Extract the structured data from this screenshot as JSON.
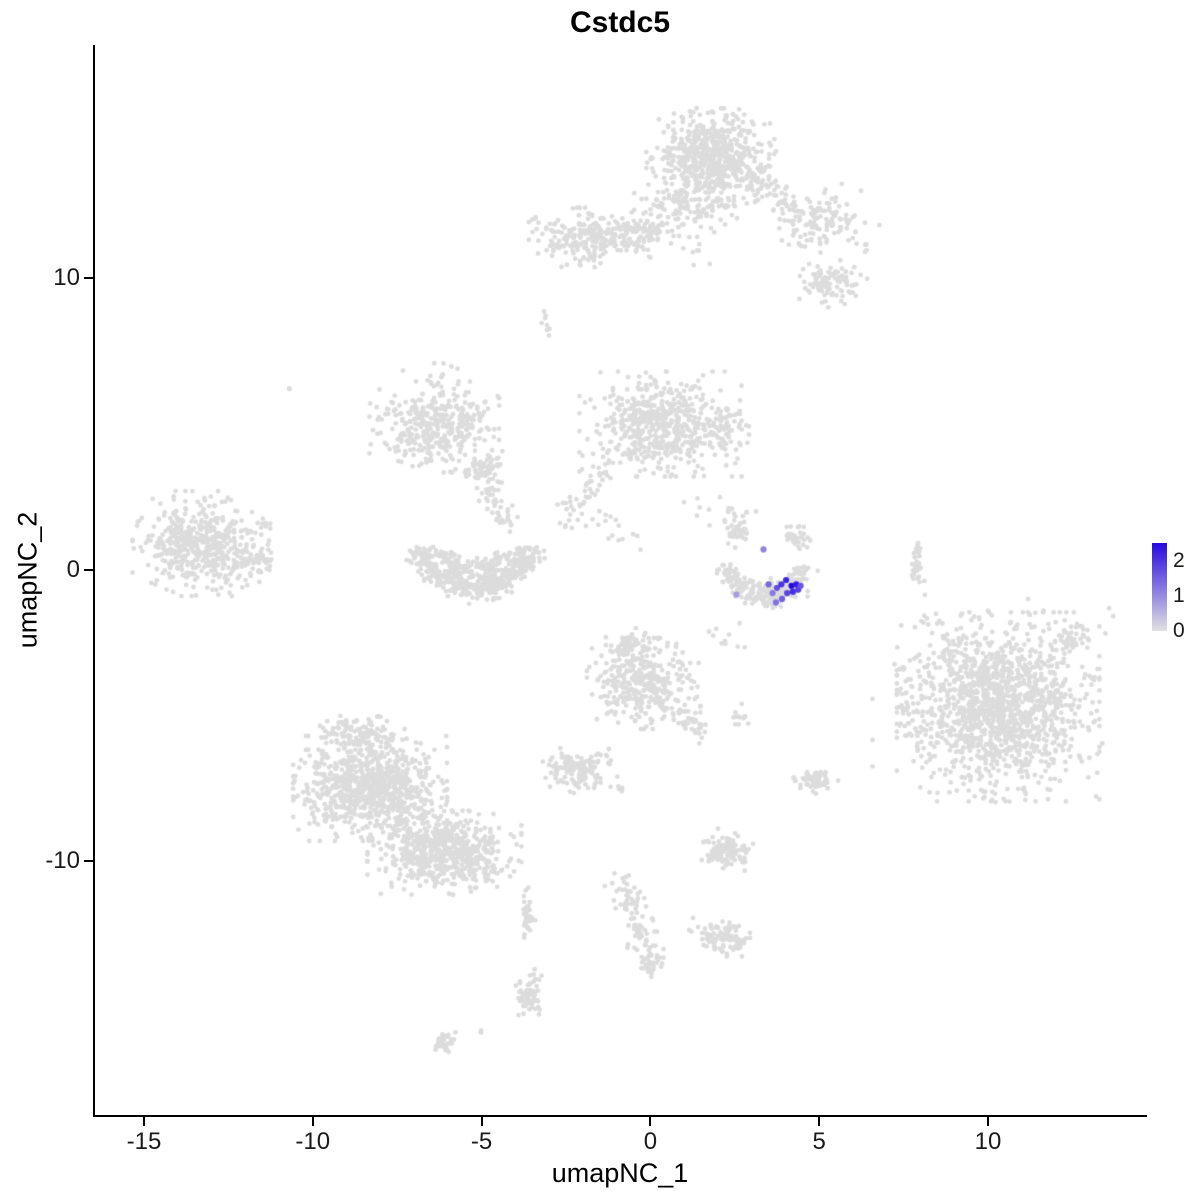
{
  "title": "Cstdc5",
  "axes": {
    "x": {
      "label": "umapNC_1",
      "ticks": [
        "-15",
        "-10",
        "-5",
        "0",
        "5",
        "10"
      ],
      "tick_values": [
        -15,
        -10,
        -5,
        0,
        5,
        10
      ],
      "range": [
        -16.45,
        14.65
      ]
    },
    "y": {
      "label": "umapNC_2",
      "ticks": [
        "-10",
        "0",
        "10"
      ],
      "tick_values": [
        -10,
        0,
        10
      ],
      "range": [
        -18.7,
        18.0
      ]
    }
  },
  "legend": {
    "tick_labels": [
      "2",
      "1",
      "0"
    ],
    "tick_values": [
      2,
      1,
      0
    ],
    "domain": [
      0,
      2.5
    ]
  },
  "style": {
    "base_point_color": "#DCDCDC",
    "axis_color": "#000000",
    "background_color": "#FFFFFF"
  },
  "chart_data": {
    "type": "scatter",
    "title": "Cstdc5",
    "xlabel": "umapNC_1",
    "ylabel": "umapNC_2",
    "xlim": [
      -16.45,
      14.65
    ],
    "ylim": [
      -18.7,
      18.0
    ],
    "grid": false,
    "legend_position": "right",
    "seed": 1234,
    "point_radius_px": 2.4,
    "color_scale": {
      "low": "#E1E1E1",
      "high": "#2609E0",
      "domain": [
        0,
        2.5
      ]
    },
    "background_clusters": [
      {
        "shape": "blob",
        "cx": 1.8,
        "cy": 14.15,
        "rx": 1.6,
        "ry": 1.4,
        "n": 620
      },
      {
        "shape": "blob",
        "cx": 1.2,
        "cy": 12.5,
        "rx": 1.4,
        "ry": 0.9,
        "n": 120
      },
      {
        "shape": "blob",
        "cx": 4.9,
        "cy": 11.9,
        "rx": 0.9,
        "ry": 0.85,
        "n": 100
      },
      {
        "shape": "blob",
        "cx": 5.4,
        "cy": 9.9,
        "rx": 0.85,
        "ry": 0.75,
        "n": 95
      },
      {
        "shape": "line",
        "x1": 2.9,
        "y1": 13.4,
        "x2": 4.6,
        "y2": 12.2,
        "w": 0.55,
        "n": 70
      },
      {
        "shape": "line",
        "x1": 5.6,
        "y1": 12.8,
        "x2": 6.3,
        "y2": 11.2,
        "w": 0.7,
        "n": 25
      },
      {
        "shape": "line",
        "x1": 0.9,
        "y1": 11.3,
        "x2": 1.6,
        "y2": 10.5,
        "w": 0.35,
        "n": 10
      },
      {
        "shape": "blob",
        "cx": -1.8,
        "cy": 11.4,
        "rx": 1.5,
        "ry": 0.85,
        "n": 240
      },
      {
        "shape": "blob",
        "cx": -0.2,
        "cy": 11.6,
        "rx": 0.7,
        "ry": 0.6,
        "n": 60
      },
      {
        "shape": "blob",
        "cx": -3.1,
        "cy": 8.5,
        "rx": 0.12,
        "ry": 0.45,
        "n": 8
      },
      {
        "shape": "blob",
        "cx": 0.3,
        "cy": 5.0,
        "rx": 2.0,
        "ry": 1.5,
        "n": 560
      },
      {
        "shape": "line",
        "x1": -1.3,
        "y1": 3.6,
        "x2": -2.6,
        "y2": 1.6,
        "w": 0.5,
        "n": 50
      },
      {
        "shape": "blob",
        "cx": 2.2,
        "cy": 4.6,
        "rx": 0.6,
        "ry": 0.9,
        "n": 50
      },
      {
        "shape": "line",
        "x1": -1.5,
        "y1": 1.9,
        "x2": -0.5,
        "y2": 0.9,
        "w": 0.5,
        "n": 15
      },
      {
        "shape": "line",
        "x1": 1.3,
        "y1": 2.3,
        "x2": 3.0,
        "y2": 1.6,
        "w": 0.6,
        "n": 18
      },
      {
        "shape": "blob",
        "cx": -6.4,
        "cy": 4.9,
        "rx": 1.6,
        "ry": 1.3,
        "n": 360
      },
      {
        "shape": "line",
        "x1": -7.0,
        "y1": 6.5,
        "x2": -5.5,
        "y2": 7.0,
        "w": 0.4,
        "n": 12
      },
      {
        "shape": "blob",
        "cx": -4.9,
        "cy": 3.5,
        "rx": 0.5,
        "ry": 0.5,
        "n": 60
      },
      {
        "shape": "line",
        "x1": -4.8,
        "y1": 3.2,
        "x2": -4.3,
        "y2": 1.5,
        "w": 0.4,
        "n": 50
      },
      {
        "shape": "arc",
        "cx": -5.2,
        "cy": 0.9,
        "rx": 1.6,
        "ry": 1.5,
        "a1": 185,
        "a2": 355,
        "w": 0.5,
        "n": 420
      },
      {
        "shape": "arc",
        "cx": -5.2,
        "cy": 0.9,
        "rx": 1.0,
        "ry": 0.9,
        "a1": 200,
        "a2": 340,
        "w": 0.4,
        "n": 120
      },
      {
        "shape": "blob",
        "cx": -13.3,
        "cy": 0.9,
        "rx": 1.7,
        "ry": 1.5,
        "n": 520
      },
      {
        "shape": "blob",
        "cx": -11.6,
        "cy": 0.3,
        "rx": 0.4,
        "ry": 0.6,
        "n": 30
      },
      {
        "shape": "blob",
        "cx": -10.7,
        "cy": 6.2,
        "rx": 0.08,
        "ry": 0.08,
        "n": 2
      },
      {
        "shape": "arc",
        "cx": 3.4,
        "cy": 0.35,
        "rx": 1.1,
        "ry": 1.25,
        "a1": 190,
        "a2": 350,
        "w": 0.45,
        "n": 210
      },
      {
        "shape": "blob",
        "cx": 2.6,
        "cy": 1.3,
        "rx": 0.35,
        "ry": 0.45,
        "n": 40
      },
      {
        "shape": "blob",
        "cx": 3.7,
        "cy": -0.7,
        "rx": 0.8,
        "ry": 0.35,
        "n": 70
      },
      {
        "shape": "blob",
        "cx": 4.4,
        "cy": 1.1,
        "rx": 0.3,
        "ry": 0.5,
        "n": 30
      },
      {
        "shape": "blob",
        "cx": 7.9,
        "cy": 0.2,
        "rx": 0.18,
        "ry": 0.85,
        "n": 35
      },
      {
        "shape": "blob",
        "cx": 10.3,
        "cy": -4.7,
        "rx": 2.5,
        "ry": 2.7,
        "n": 1250
      },
      {
        "shape": "blob",
        "cx": 10.3,
        "cy": -4.7,
        "rx": 3.1,
        "ry": 3.2,
        "n": 180
      },
      {
        "shape": "line",
        "x1": 12.0,
        "y1": -2.6,
        "x2": 13.0,
        "y2": -2.0,
        "w": 0.5,
        "n": 40
      },
      {
        "shape": "line",
        "x1": 7.6,
        "y1": -3.2,
        "x2": 7.9,
        "y2": -6.0,
        "w": 0.5,
        "n": 40
      },
      {
        "shape": "line",
        "x1": 8.0,
        "y1": -1.6,
        "x2": 9.2,
        "y2": -2.3,
        "w": 0.4,
        "n": 12
      },
      {
        "shape": "blob",
        "cx": -0.2,
        "cy": -3.9,
        "rx": 1.4,
        "ry": 1.3,
        "n": 330
      },
      {
        "shape": "blob",
        "cx": -0.6,
        "cy": -2.6,
        "rx": 0.6,
        "ry": 0.5,
        "n": 60
      },
      {
        "shape": "line",
        "x1": 0.8,
        "y1": -4.9,
        "x2": 1.5,
        "y2": -5.6,
        "w": 0.4,
        "n": 40
      },
      {
        "shape": "blob",
        "cx": 2.6,
        "cy": -5.0,
        "rx": 0.25,
        "ry": 0.35,
        "n": 12
      },
      {
        "shape": "line",
        "x1": 2.0,
        "y1": -1.9,
        "x2": 2.8,
        "y2": -2.9,
        "w": 0.4,
        "n": 10
      },
      {
        "shape": "line",
        "x1": -1.2,
        "y1": -6.2,
        "x2": -0.8,
        "y2": -7.6,
        "w": 0.4,
        "n": 12
      },
      {
        "shape": "blob",
        "cx": -8.3,
        "cy": -7.5,
        "rx": 1.9,
        "ry": 1.5,
        "n": 850
      },
      {
        "shape": "blob",
        "cx": -6.1,
        "cy": -9.7,
        "rx": 1.9,
        "ry": 1.2,
        "n": 500
      },
      {
        "shape": "blob",
        "cx": -8.6,
        "cy": -5.6,
        "rx": 1.1,
        "ry": 0.6,
        "n": 130
      },
      {
        "shape": "line",
        "x1": -7.2,
        "y1": -8.6,
        "x2": -4.9,
        "y2": -10.3,
        "w": 0.8,
        "n": 150
      },
      {
        "shape": "blob",
        "cx": -2.2,
        "cy": -6.9,
        "rx": 0.85,
        "ry": 0.65,
        "n": 130
      },
      {
        "shape": "blob",
        "cx": 4.9,
        "cy": -7.2,
        "rx": 0.55,
        "ry": 0.4,
        "n": 55
      },
      {
        "shape": "blob",
        "cx": 2.2,
        "cy": -9.6,
        "rx": 0.7,
        "ry": 0.6,
        "n": 110
      },
      {
        "shape": "blob",
        "cx": -3.65,
        "cy": -11.9,
        "rx": 0.2,
        "ry": 0.85,
        "n": 45
      },
      {
        "shape": "line",
        "x1": -0.9,
        "y1": -10.6,
        "x2": 0.0,
        "y2": -13.4,
        "w": 0.45,
        "n": 95
      },
      {
        "shape": "blob",
        "cx": 0.0,
        "cy": -13.6,
        "rx": 0.3,
        "ry": 0.3,
        "n": 25
      },
      {
        "shape": "blob",
        "cx": 2.05,
        "cy": -12.6,
        "rx": 0.75,
        "ry": 0.55,
        "n": 100
      },
      {
        "shape": "blob",
        "cx": -3.6,
        "cy": -14.6,
        "rx": 0.4,
        "ry": 0.75,
        "n": 65
      },
      {
        "shape": "blob",
        "cx": -6.1,
        "cy": -16.2,
        "rx": 0.35,
        "ry": 0.28,
        "n": 30
      },
      {
        "shape": "blob",
        "cx": -5.0,
        "cy": -15.8,
        "rx": 0.1,
        "ry": 0.1,
        "n": 3
      }
    ],
    "expressing_cells": [
      {
        "x": 3.35,
        "y": 0.7,
        "value": 1.1
      },
      {
        "x": 2.55,
        "y": -0.85,
        "value": 0.8
      },
      {
        "x": 3.5,
        "y": -0.5,
        "value": 1.4
      },
      {
        "x": 3.62,
        "y": -0.8,
        "value": 1.2
      },
      {
        "x": 3.75,
        "y": -0.62,
        "value": 1.7
      },
      {
        "x": 3.72,
        "y": -1.12,
        "value": 1.3
      },
      {
        "x": 3.88,
        "y": -0.5,
        "value": 2.0
      },
      {
        "x": 3.9,
        "y": -1.0,
        "value": 1.5
      },
      {
        "x": 4.02,
        "y": -0.35,
        "value": 2.2
      },
      {
        "x": 4.05,
        "y": -0.8,
        "value": 1.8
      },
      {
        "x": 4.18,
        "y": -0.55,
        "value": 2.5
      },
      {
        "x": 4.22,
        "y": -0.75,
        "value": 2.1
      },
      {
        "x": 4.32,
        "y": -0.5,
        "value": 2.3
      },
      {
        "x": 4.38,
        "y": -0.68,
        "value": 1.9
      },
      {
        "x": 4.45,
        "y": -0.55,
        "value": 1.6
      }
    ]
  }
}
